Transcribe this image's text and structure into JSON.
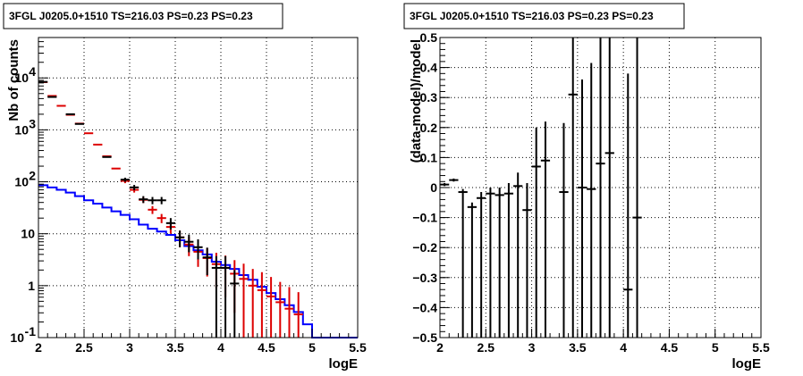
{
  "chart_data": [
    {
      "type": "line",
      "title": "3FGL J0205.0+1510 TS=216.03 PS=0.23 PS=0.23",
      "xlabel": "logE",
      "ylabel": "Nb of counts",
      "xlim": [
        2,
        5.5
      ],
      "ylim": [
        0.1,
        60000
      ],
      "log_y": true,
      "grid": true,
      "x_ticks": [
        "2",
        "2.5",
        "3",
        "3.5",
        "4",
        "4.5",
        "5",
        "5.5"
      ],
      "y_ticks": [
        {
          "value": 0.1,
          "base": "10",
          "exp": "-1"
        },
        {
          "value": 1,
          "base": "1",
          "exp": ""
        },
        {
          "value": 10,
          "base": "10",
          "exp": ""
        },
        {
          "value": 100,
          "base": "10",
          "exp": "2"
        },
        {
          "value": 1000,
          "base": "10",
          "exp": "3"
        },
        {
          "value": 10000,
          "base": "10",
          "exp": "4"
        }
      ],
      "series": [
        {
          "color": "#0000ff",
          "style": "step",
          "edges": [
            2,
            2.1,
            2.2,
            2.3,
            2.4,
            2.5,
            2.6,
            2.7,
            2.8,
            2.9,
            3,
            3.1,
            3.2,
            3.3,
            3.4,
            3.5,
            3.6,
            3.7,
            3.8,
            3.9,
            4,
            4.1,
            4.2,
            4.3,
            4.4,
            4.5,
            4.6,
            4.7,
            4.8,
            4.9,
            5,
            5.1,
            5.2,
            5.3,
            5.4,
            5.5
          ],
          "values": [
            86,
            78,
            70,
            62,
            53,
            44,
            38,
            32,
            27,
            23,
            19,
            15,
            12.5,
            11,
            9.5,
            7.5,
            5.8,
            4.8,
            4.0,
            2.9,
            2.5,
            2.1,
            1.6,
            1.3,
            0.95,
            0.72,
            0.55,
            0.42,
            0.31,
            0.18,
            0.1,
            0.1,
            0.1,
            0.1,
            0.1
          ]
        },
        {
          "color": "#dd0000",
          "style": "errorbars",
          "x": [
            2.05,
            2.15,
            2.25,
            2.35,
            2.45,
            2.55,
            2.65,
            2.75,
            2.85,
            2.95,
            3.05,
            3.15,
            3.25,
            3.35,
            3.45,
            3.55,
            3.65,
            3.75,
            3.85,
            3.95,
            4.05,
            4.15,
            4.25,
            4.35,
            4.45,
            4.55,
            4.65,
            4.75,
            4.85
          ],
          "y": [
            8300,
            4500,
            2900,
            1950,
            1320,
            860,
            520,
            310,
            180,
            104,
            70,
            45,
            29,
            20,
            13.5,
            8.5,
            6.2,
            4.5,
            3.4,
            2.6,
            2.2,
            1.7,
            1.35,
            1.0,
            0.82,
            0.62,
            0.48,
            0.36,
            0.28
          ],
          "err_low": [
            0,
            0,
            0,
            0,
            0,
            0,
            0,
            0,
            0,
            10,
            8,
            6,
            5,
            4,
            3.5,
            3,
            2.5,
            2.2,
            1.9,
            1.7,
            1.6,
            1.4,
            1.25,
            0.95,
            0.8,
            0.62,
            0.48,
            0.36,
            0.28
          ],
          "err_high": [
            0,
            0,
            0,
            0,
            0,
            0,
            0,
            0,
            0,
            10,
            8,
            6,
            5,
            4,
            3.5,
            3,
            2.5,
            2.2,
            1.9,
            1.7,
            1.6,
            1.4,
            1.3,
            1.1,
            1.0,
            0.85,
            0.7,
            0.58,
            0.47
          ]
        },
        {
          "color": "#000000",
          "style": "errorbars",
          "x": [
            2.05,
            2.15,
            2.35,
            2.45,
            2.75,
            2.95,
            3.05,
            3.15,
            3.25,
            3.35,
            3.45,
            3.55,
            3.65,
            3.75,
            3.85,
            3.95,
            4.05,
            4.15
          ],
          "y": [
            8400,
            4300,
            2000,
            1300,
            300,
            110,
            78,
            46,
            44,
            44,
            16,
            8.5,
            7,
            5.5,
            3.5,
            2.2,
            2.2,
            1.1
          ],
          "err_low": [
            0,
            0,
            0,
            0,
            0,
            10,
            9,
            7,
            7,
            7,
            4,
            3,
            2.6,
            2.3,
            1.9,
            2.1,
            2.1,
            1.0
          ],
          "err_high": [
            0,
            0,
            0,
            0,
            0,
            10,
            9,
            7,
            7,
            7,
            4,
            3,
            2.6,
            2.3,
            1.9,
            1.5,
            1.5,
            0.9
          ]
        }
      ]
    },
    {
      "type": "scatter",
      "title": "3FGL J0205.0+1510 TS=216.03 PS=0.23 PS=0.23",
      "xlabel": "logE",
      "ylabel": "(data-model)/model",
      "xlim": [
        2,
        5.5
      ],
      "ylim": [
        -0.5,
        0.5
      ],
      "grid": true,
      "x_ticks": [
        "2",
        "2.5",
        "3",
        "3.5",
        "4",
        "4.5",
        "5",
        "5.5"
      ],
      "y_ticks": [
        "−0.5",
        "−0.4",
        "−0.3",
        "−0.2",
        "−0.1",
        "0",
        "0.1",
        "0.2",
        "0.3",
        "0.4",
        "0.5"
      ],
      "series": [
        {
          "color": "#000000",
          "style": "errorbars",
          "x": [
            2.05,
            2.15,
            2.25,
            2.35,
            2.45,
            2.55,
            2.65,
            2.75,
            2.85,
            2.95,
            3.05,
            3.15,
            3.35,
            3.45,
            3.55,
            3.65,
            3.75,
            3.85,
            4.05,
            4.15
          ],
          "y": [
            0.01,
            0.025,
            -0.015,
            -0.065,
            -0.035,
            -0.02,
            -0.025,
            -0.02,
            0.005,
            -0.075,
            0.07,
            0.09,
            -0.015,
            0.31,
            0.0,
            -0.005,
            0.08,
            0.115,
            -0.34,
            -0.1
          ],
          "err_low": [
            0.005,
            0.005,
            0.01,
            0.015,
            0.02,
            0.02,
            0.025,
            0.035,
            0.045,
            0.09,
            0.13,
            0.12,
            0.23,
            0.31,
            0.36,
            0.4,
            0.5,
            0.6,
            0.3,
            0.4
          ],
          "err_high": [
            0.005,
            0.005,
            0.01,
            0.015,
            0.02,
            0.02,
            0.025,
            0.035,
            0.045,
            0.09,
            0.13,
            0.13,
            0.23,
            0.31,
            0.36,
            0.42,
            0.5,
            0.6,
            0.72,
            0.63
          ]
        }
      ]
    }
  ]
}
